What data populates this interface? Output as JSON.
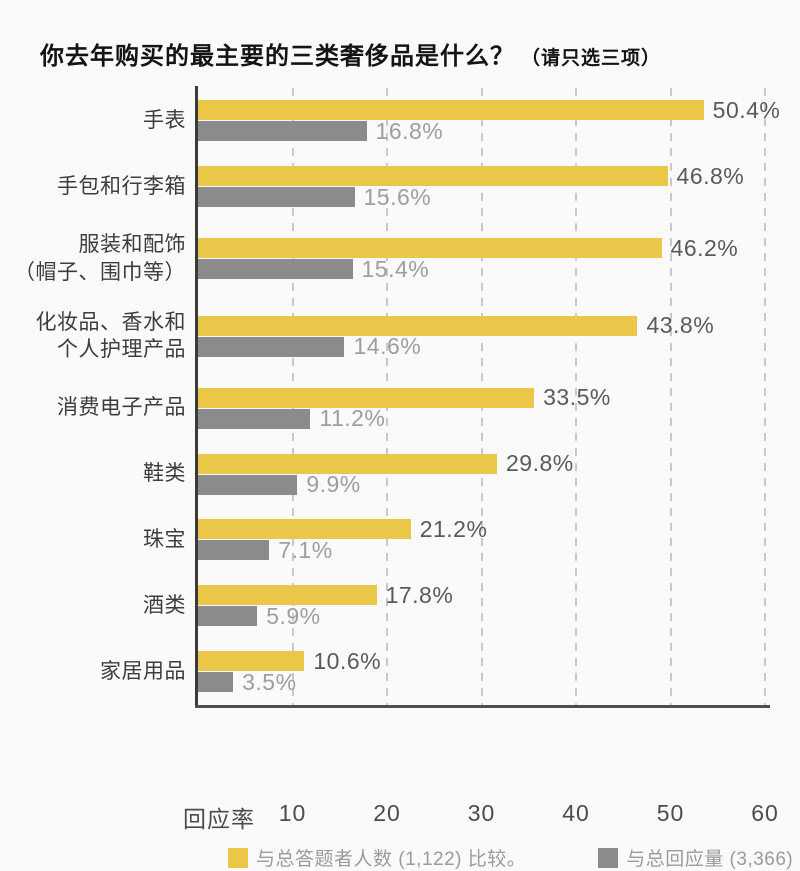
{
  "title": {
    "main": "你去年购买的最主要的三类奢侈品是什么？",
    "note": "（请只选三项）"
  },
  "chart_data": {
    "type": "bar",
    "orientation": "horizontal",
    "title": "你去年购买的最主要的三类奢侈品是什么？（请只选三项）",
    "categories": [
      [
        "手表"
      ],
      [
        "手包和行李箱"
      ],
      [
        "服装和配饰",
        "（帽子、围巾等）"
      ],
      [
        "化妆品、香水和",
        "个人护理产品"
      ],
      [
        "消费电子产品"
      ],
      [
        "鞋类"
      ],
      [
        "珠宝"
      ],
      [
        "酒类"
      ],
      [
        "家居用品"
      ]
    ],
    "series": [
      {
        "name": "与总答题者人数 (1,122) 比较。",
        "color": "#EAC748",
        "values": [
          50.4,
          46.8,
          46.2,
          43.8,
          33.5,
          29.8,
          21.2,
          17.8,
          10.6
        ]
      },
      {
        "name": "与总回应量 (3,366) 比较。",
        "color": "#8B8B8B",
        "values": [
          16.8,
          15.6,
          15.4,
          14.6,
          11.2,
          9.9,
          7.1,
          5.9,
          3.5
        ]
      }
    ],
    "value_suffix": "%",
    "xlabel": "回应率",
    "xticks": [
      10,
      20,
      30,
      40,
      50,
      60
    ],
    "xlim": [
      0,
      60
    ],
    "grid": "dashed-vertical",
    "legend_position": "bottom",
    "colors": {
      "primary_bar": "#EAC748",
      "secondary_bar": "#8B8B8B",
      "axis": "#3b3b3b",
      "gridline": "#c9c9c9",
      "primary_value_label": "#5a5a5a",
      "secondary_value_label": "#9e9e9e",
      "legend_text": "#9b9b9b",
      "background": "#fafafa"
    }
  }
}
